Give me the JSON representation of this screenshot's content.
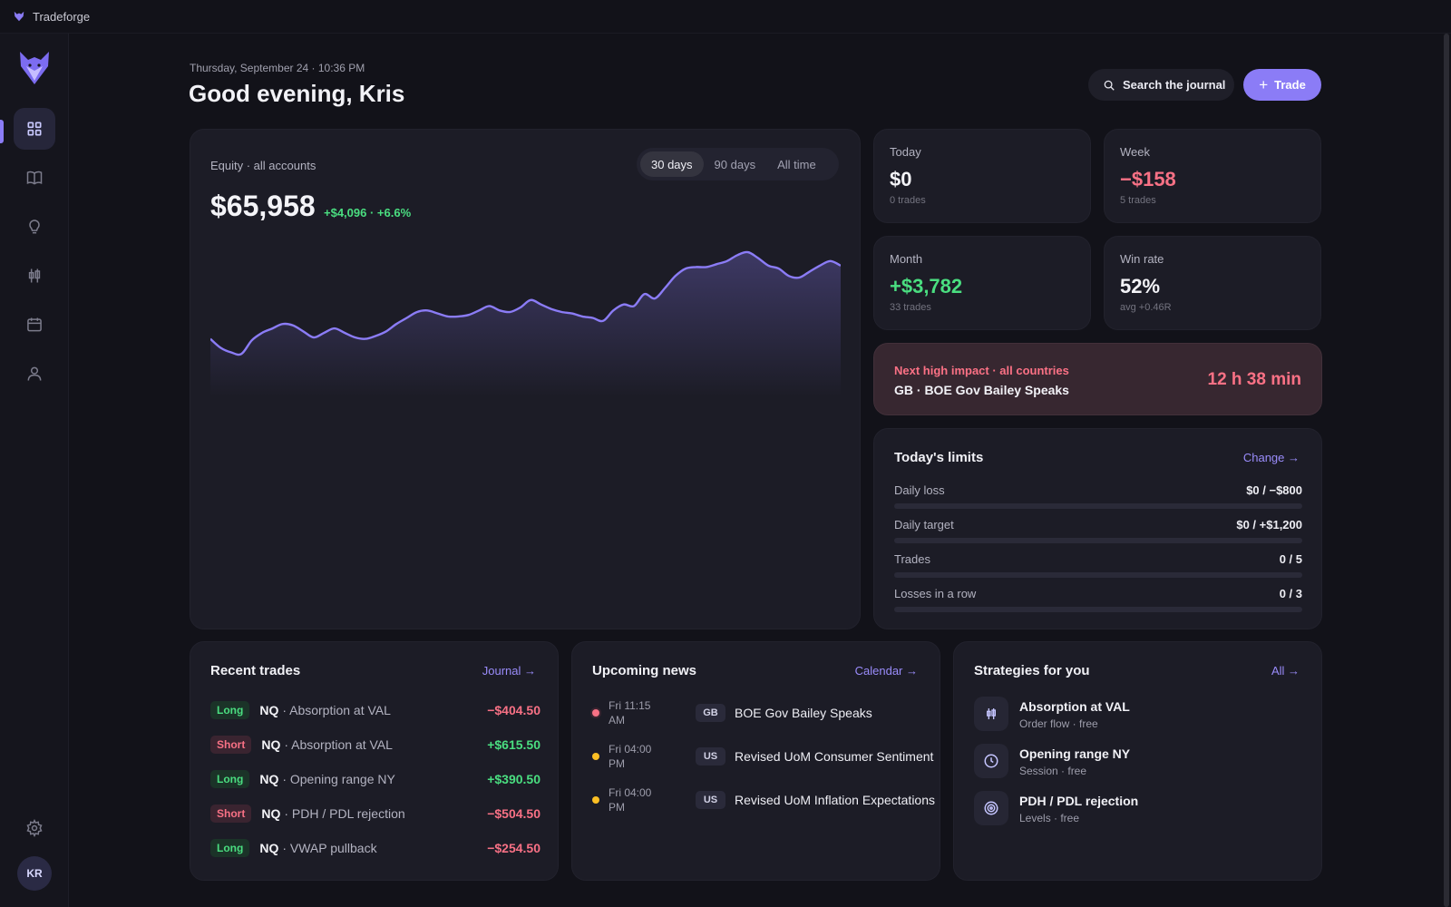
{
  "window": {
    "app_name": "Tradeforge"
  },
  "sidebar": {
    "items": [
      {
        "name": "dashboard",
        "icon": "grid-icon",
        "active": true
      },
      {
        "name": "journal",
        "icon": "book-icon"
      },
      {
        "name": "ideas",
        "icon": "lightbulb-icon"
      },
      {
        "name": "strategies",
        "icon": "candlestick-icon"
      },
      {
        "name": "calendar",
        "icon": "calendar-icon"
      },
      {
        "name": "profile",
        "icon": "user-icon"
      }
    ],
    "settings_icon": "gear-icon",
    "avatar_initials": "KR"
  },
  "header": {
    "date": "Thursday, September 24 · 10:36 PM",
    "greeting": "Good evening, Kris",
    "search_label": "Search the journal",
    "trade_label": "Trade"
  },
  "equity": {
    "label": "Equity · all accounts",
    "value": "$65,958",
    "change": "+$4,096 · +6.6%",
    "ranges": [
      "30 days",
      "90 days",
      "All time"
    ],
    "active_range": "30 days",
    "accent_color": "#8b7cf6"
  },
  "chart_data": {
    "type": "area",
    "title": "",
    "xlabel": "",
    "ylabel": "",
    "grid": false,
    "ylim": [
      0,
      100
    ],
    "values": [
      39,
      33,
      30,
      29,
      38,
      43,
      46,
      49,
      48,
      44,
      40,
      43,
      46,
      43,
      40,
      39,
      41,
      44,
      49,
      53,
      57,
      58,
      56,
      54,
      54,
      55,
      58,
      61,
      58,
      57,
      60,
      65,
      62,
      59,
      57,
      56,
      54,
      53,
      51,
      58,
      62,
      61,
      69,
      66,
      73,
      81,
      86,
      87,
      87,
      89,
      91,
      95,
      97,
      93,
      88,
      86,
      81,
      80,
      84,
      88,
      91,
      88
    ]
  },
  "stats": [
    {
      "label": "Today",
      "value": "$0",
      "sub": "0 trades",
      "tone": "neutral"
    },
    {
      "label": "Week",
      "value": "−$158",
      "sub": "5 trades",
      "tone": "neg"
    },
    {
      "label": "Month",
      "value": "+$3,782",
      "sub": "33 trades",
      "tone": "pos"
    },
    {
      "label": "Win rate",
      "value": "52%",
      "sub": "avg +0.46R",
      "tone": "neutral"
    }
  ],
  "alert": {
    "label": "Next high impact · all countries",
    "event": "GB · BOE Gov Bailey Speaks",
    "countdown": "12 h 38 min"
  },
  "limits": {
    "title": "Today's limits",
    "link": "Change →",
    "rows": [
      {
        "name": "Daily loss",
        "value": "$0 / −$800",
        "progress": 0
      },
      {
        "name": "Daily target",
        "value": "$0 / +$1,200",
        "progress": 0
      },
      {
        "name": "Trades",
        "value": "0 / 5",
        "progress": 0
      },
      {
        "name": "Losses in a row",
        "value": "0 / 3",
        "progress": 0
      }
    ]
  },
  "recent_trades": {
    "title": "Recent trades",
    "link": "Journal →",
    "rows": [
      {
        "side": "Long",
        "symbol": "NQ",
        "setup": "· Absorption at VAL",
        "pnl": "−$404.50",
        "tone": "neg"
      },
      {
        "side": "Short",
        "symbol": "NQ",
        "setup": "· Absorption at VAL",
        "pnl": "+$615.50",
        "tone": "pos"
      },
      {
        "side": "Long",
        "symbol": "NQ",
        "setup": "· Opening range NY",
        "pnl": "+$390.50",
        "tone": "pos"
      },
      {
        "side": "Short",
        "symbol": "NQ",
        "setup": "· PDH / PDL rejection",
        "pnl": "−$504.50",
        "tone": "neg"
      },
      {
        "side": "Long",
        "symbol": "NQ",
        "setup": "· VWAP pullback",
        "pnl": "−$254.50",
        "tone": "neg"
      }
    ]
  },
  "news": {
    "title": "Upcoming news",
    "link": "Calendar →",
    "rows": [
      {
        "time_line1": "Fri 11:15",
        "time_line2": "AM",
        "country": "GB",
        "title": "BOE Gov Bailey Speaks",
        "impact": "high"
      },
      {
        "time_line1": "Fri 04:00",
        "time_line2": "PM",
        "country": "US",
        "title": "Revised UoM Consumer Sentiment",
        "impact": "med"
      },
      {
        "time_line1": "Fri 04:00",
        "time_line2": "PM",
        "country": "US",
        "title": "Revised UoM Inflation Expectations",
        "impact": "med"
      }
    ]
  },
  "strategies": {
    "title": "Strategies for you",
    "link": "All →",
    "rows": [
      {
        "name": "Absorption at VAL",
        "sub": "Order flow · free",
        "icon": "candlestick-icon"
      },
      {
        "name": "Opening range NY",
        "sub": "Session · free",
        "icon": "clock-icon"
      },
      {
        "name": "PDH / PDL rejection",
        "sub": "Levels · free",
        "icon": "target-icon"
      }
    ]
  }
}
